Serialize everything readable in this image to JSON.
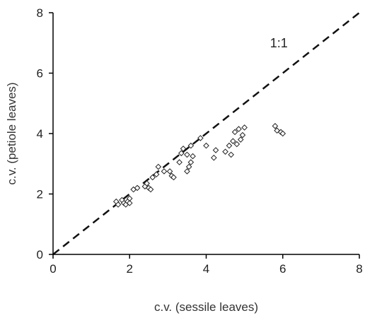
{
  "chart_data": {
    "type": "scatter",
    "xlabel": "c.v. (sessile leaves)",
    "ylabel": "c.v. (petiole leaves)",
    "xlim": [
      0,
      8
    ],
    "ylim": [
      0,
      8
    ],
    "xticks": [
      "0",
      "2",
      "4",
      "6",
      "8"
    ],
    "yticks": [
      "0",
      "2",
      "4",
      "6",
      "8"
    ],
    "grid": false,
    "reference_line": {
      "label": "1:1",
      "x": [
        0,
        8
      ],
      "y": [
        0,
        8
      ],
      "style": "dashed"
    },
    "annotation": {
      "text": "1:1",
      "x": 6.0,
      "y": 7.0
    },
    "points": [
      {
        "x": 1.65,
        "y": 1.75
      },
      {
        "x": 1.7,
        "y": 1.65
      },
      {
        "x": 1.8,
        "y": 1.8
      },
      {
        "x": 1.85,
        "y": 1.7
      },
      {
        "x": 1.9,
        "y": 1.65
      },
      {
        "x": 1.95,
        "y": 1.75
      },
      {
        "x": 2.0,
        "y": 1.7
      },
      {
        "x": 2.0,
        "y": 1.85
      },
      {
        "x": 2.1,
        "y": 2.15
      },
      {
        "x": 2.2,
        "y": 2.2
      },
      {
        "x": 2.4,
        "y": 2.25
      },
      {
        "x": 2.45,
        "y": 2.35
      },
      {
        "x": 2.5,
        "y": 2.2
      },
      {
        "x": 2.55,
        "y": 2.15
      },
      {
        "x": 2.6,
        "y": 2.55
      },
      {
        "x": 2.7,
        "y": 2.65
      },
      {
        "x": 2.75,
        "y": 2.9
      },
      {
        "x": 2.9,
        "y": 2.75
      },
      {
        "x": 3.05,
        "y": 2.75
      },
      {
        "x": 3.1,
        "y": 2.6
      },
      {
        "x": 3.15,
        "y": 2.55
      },
      {
        "x": 3.3,
        "y": 3.05
      },
      {
        "x": 3.35,
        "y": 3.35
      },
      {
        "x": 3.4,
        "y": 3.5
      },
      {
        "x": 3.5,
        "y": 3.3
      },
      {
        "x": 3.5,
        "y": 2.75
      },
      {
        "x": 3.55,
        "y": 2.9
      },
      {
        "x": 3.6,
        "y": 3.05
      },
      {
        "x": 3.6,
        "y": 3.6
      },
      {
        "x": 3.65,
        "y": 3.25
      },
      {
        "x": 3.85,
        "y": 3.85
      },
      {
        "x": 4.0,
        "y": 3.6
      },
      {
        "x": 4.2,
        "y": 3.2
      },
      {
        "x": 4.25,
        "y": 3.45
      },
      {
        "x": 4.5,
        "y": 3.4
      },
      {
        "x": 4.6,
        "y": 3.6
      },
      {
        "x": 4.65,
        "y": 3.3
      },
      {
        "x": 4.7,
        "y": 3.75
      },
      {
        "x": 4.75,
        "y": 4.05
      },
      {
        "x": 4.8,
        "y": 3.65
      },
      {
        "x": 4.85,
        "y": 4.15
      },
      {
        "x": 4.9,
        "y": 3.8
      },
      {
        "x": 4.95,
        "y": 3.95
      },
      {
        "x": 5.0,
        "y": 4.2
      },
      {
        "x": 5.8,
        "y": 4.25
      },
      {
        "x": 5.85,
        "y": 4.1
      },
      {
        "x": 5.95,
        "y": 4.05
      },
      {
        "x": 6.0,
        "y": 4.0
      }
    ]
  }
}
